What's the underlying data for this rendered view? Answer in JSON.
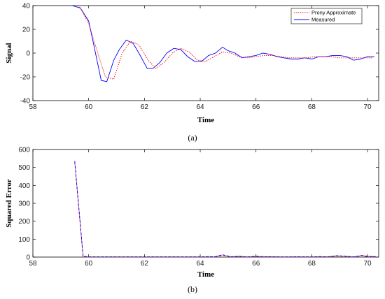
{
  "chart_data": [
    {
      "type": "line",
      "caption": "(a)",
      "xlabel": "Time",
      "ylabel": "Signal",
      "xlim": [
        58,
        70.4
      ],
      "ylim": [
        -40,
        40
      ],
      "xticks": [
        58,
        60,
        62,
        64,
        66,
        68,
        70
      ],
      "yticks": [
        -40,
        -20,
        0,
        20,
        40
      ],
      "grid": false,
      "legend_position": "top-right",
      "series": [
        {
          "name": "Prony Approximate",
          "color": "#ff0000",
          "dash": "dotted",
          "x": [
            59.4,
            59.7,
            60.0,
            60.3,
            60.6,
            60.9,
            61.2,
            61.5,
            61.8,
            62.1,
            62.4,
            62.7,
            63.0,
            63.3,
            63.6,
            63.9,
            64.2,
            64.5,
            64.8,
            65.1,
            65.4,
            65.7,
            66.0,
            66.3,
            66.6,
            66.9,
            67.2,
            67.5,
            67.8,
            68.1,
            68.4,
            68.7,
            69.0,
            69.3,
            69.6,
            69.9,
            70.2
          ],
          "y": [
            45,
            38,
            25,
            2,
            -20,
            -22,
            0,
            10,
            7,
            -5,
            -13,
            -8,
            0,
            4,
            1,
            -6,
            -7,
            -3,
            1,
            0,
            -3,
            -4,
            -3,
            -2,
            -2,
            -3,
            -4,
            -4,
            -4,
            -3,
            -3,
            -3,
            -4,
            -4,
            -4,
            -4,
            -4
          ]
        },
        {
          "name": "Measured",
          "color": "#0000ff",
          "dash": "solid",
          "x": [
            59.4,
            59.7,
            60.0,
            60.2,
            60.45,
            60.65,
            60.9,
            61.1,
            61.35,
            61.6,
            61.8,
            62.1,
            62.3,
            62.55,
            62.8,
            63.05,
            63.3,
            63.55,
            63.8,
            64.05,
            64.3,
            64.55,
            64.8,
            65.0,
            65.25,
            65.5,
            65.75,
            66.0,
            66.25,
            66.5,
            66.75,
            67.0,
            67.25,
            67.5,
            67.75,
            68.0,
            68.25,
            68.5,
            68.75,
            69.0,
            69.25,
            69.5,
            69.75,
            70.0,
            70.25
          ],
          "y": [
            40,
            38,
            27,
            5,
            -23,
            -24,
            -6,
            3,
            11,
            8,
            0,
            -13,
            -13,
            -8,
            0,
            4,
            3,
            -3,
            -7,
            -7,
            -2,
            0,
            5,
            2,
            0,
            -4,
            -3,
            -2,
            0,
            -1,
            -3,
            -4,
            -5,
            -5,
            -4,
            -5,
            -3,
            -3,
            -2,
            -2,
            -3,
            -6,
            -5,
            -3,
            -3
          ]
        }
      ]
    },
    {
      "type": "line",
      "caption": "(b)",
      "xlabel": "Time",
      "ylabel": "Squared Error",
      "xlim": [
        58,
        70.4
      ],
      "ylim": [
        0,
        600
      ],
      "xticks": [
        58,
        60,
        62,
        64,
        66,
        68,
        70
      ],
      "yticks": [
        0,
        100,
        200,
        300,
        400,
        500,
        600
      ],
      "grid": false,
      "series": [
        {
          "color": "#0000ff",
          "dash": "dashed",
          "x": [
            59.5,
            59.8,
            60.0,
            62.0,
            64.0,
            64.3,
            64.5,
            64.8,
            65.1,
            65.4,
            65.7,
            66.0,
            66.2,
            66.5,
            67.0,
            67.5,
            68.0,
            68.3,
            68.6,
            68.9,
            69.2,
            69.5,
            69.8,
            70.0,
            70.3
          ],
          "y": [
            535,
            5,
            1,
            1,
            1,
            3,
            1,
            13,
            2,
            5,
            1,
            5,
            1,
            2,
            1,
            2,
            1,
            3,
            1,
            8,
            5,
            1,
            10,
            1,
            3
          ]
        },
        {
          "color": "#ff0000",
          "dash": "dashed",
          "x": [
            59.5,
            59.8,
            60.0,
            62.0,
            64.0,
            64.5,
            64.8,
            65.1,
            65.4,
            65.7,
            66.0,
            66.5,
            67.0,
            67.5,
            68.0,
            68.5,
            68.9,
            69.2,
            69.5,
            69.8,
            70.3
          ],
          "y": [
            530,
            4,
            1,
            1,
            1,
            1,
            10,
            2,
            4,
            1,
            4,
            2,
            1,
            1,
            1,
            2,
            6,
            4,
            1,
            8,
            2
          ]
        }
      ]
    }
  ]
}
